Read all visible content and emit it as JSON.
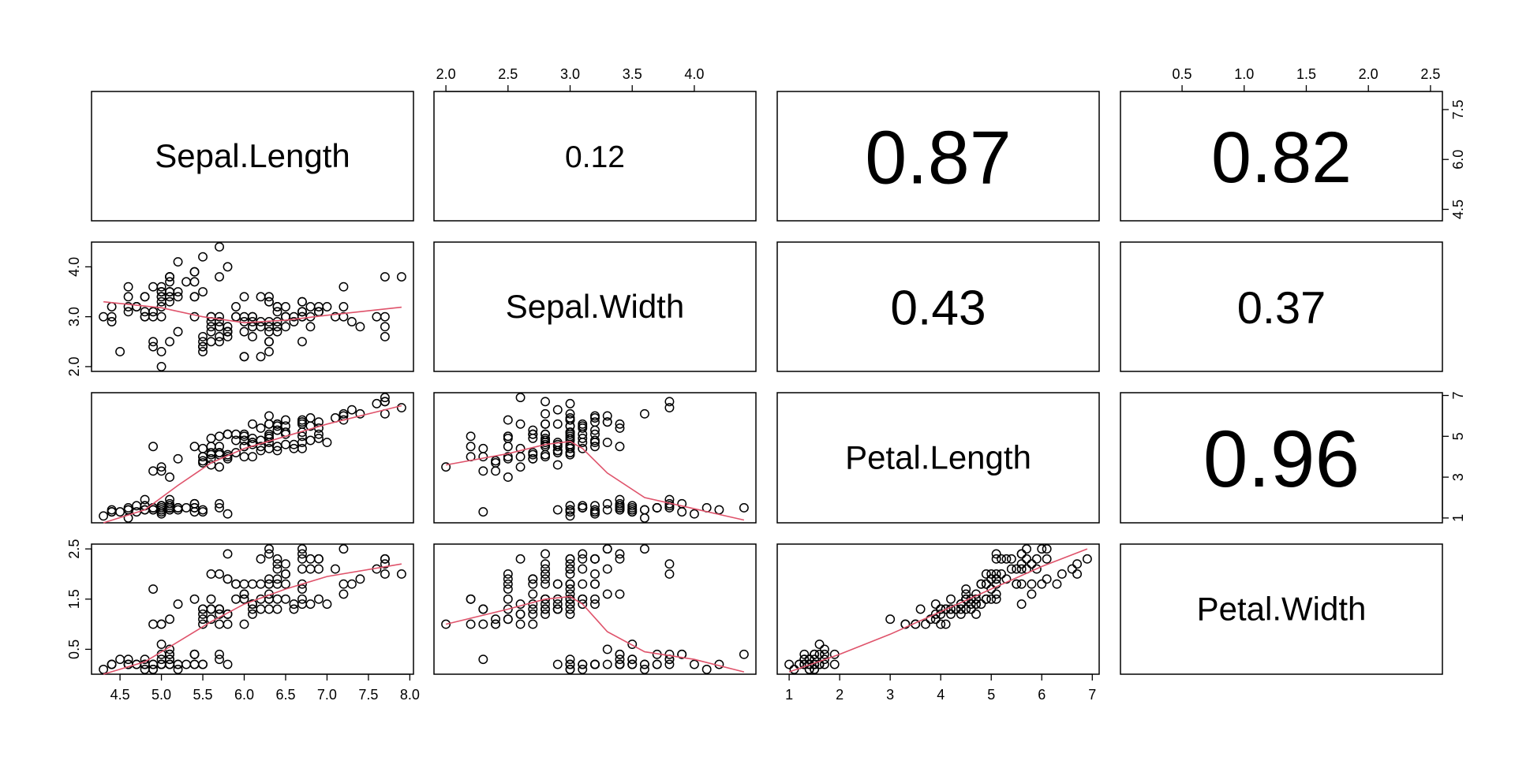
{
  "chart_data": {
    "type": "scatter",
    "variables": [
      "Sepal.Length",
      "Sepal.Width",
      "Petal.Length",
      "Petal.Width"
    ],
    "axes": [
      {
        "range": [
          4.3,
          7.9
        ],
        "ticks": [
          4.5,
          5.0,
          5.5,
          6.0,
          6.5,
          7.0,
          7.5,
          8.0
        ],
        "tick_labels": [
          "4.5",
          "5.0",
          "5.5",
          "6.0",
          "6.5",
          "7.0",
          "7.5",
          "8.0"
        ],
        "alt_ticks": [
          4.5,
          6.0,
          7.5
        ],
        "alt_tick_labels": [
          "4.5",
          "6.0",
          "7.5"
        ]
      },
      {
        "range": [
          2.0,
          4.4
        ],
        "ticks": [
          2.0,
          2.5,
          3.0,
          3.5,
          4.0
        ],
        "tick_labels": [
          "2.0",
          "2.5",
          "3.0",
          "3.5",
          "4.0"
        ],
        "alt_ticks": [
          2.0,
          3.0,
          4.0
        ],
        "alt_tick_labels": [
          "2.0",
          "3.0",
          "4.0"
        ]
      },
      {
        "range": [
          1.0,
          6.9
        ],
        "ticks": [
          1,
          2,
          3,
          4,
          5,
          6,
          7
        ],
        "tick_labels": [
          "1",
          "2",
          "3",
          "4",
          "5",
          "6",
          "7"
        ],
        "alt_ticks": [
          1,
          3,
          5,
          7
        ],
        "alt_tick_labels": [
          "1",
          "3",
          "5",
          "7"
        ]
      },
      {
        "range": [
          0.1,
          2.5
        ],
        "ticks": [
          0.5,
          1.0,
          1.5,
          2.0,
          2.5
        ],
        "tick_labels": [
          "0.5",
          "1.0",
          "1.5",
          "2.0",
          "2.5"
        ],
        "alt_ticks": [
          0.5,
          1.5,
          2.5
        ],
        "alt_tick_labels": [
          "0.5",
          "1.5",
          "2.5"
        ]
      }
    ],
    "correlations": [
      {
        "row": 0,
        "col": 1,
        "label": "0.12",
        "value": 0.12
      },
      {
        "row": 0,
        "col": 2,
        "label": "0.87",
        "value": 0.87
      },
      {
        "row": 0,
        "col": 3,
        "label": "0.82",
        "value": 0.82
      },
      {
        "row": 1,
        "col": 2,
        "label": "0.43",
        "value": 0.43
      },
      {
        "row": 1,
        "col": 3,
        "label": "0.37",
        "value": 0.37
      },
      {
        "row": 2,
        "col": 3,
        "label": "0.96",
        "value": 0.96
      }
    ],
    "data": {
      "sepal_length": [
        5.1,
        4.9,
        4.7,
        4.6,
        5.0,
        5.4,
        4.6,
        5.0,
        4.4,
        4.9,
        5.4,
        4.8,
        4.8,
        4.3,
        5.8,
        5.7,
        5.4,
        5.1,
        5.7,
        5.1,
        5.4,
        5.1,
        4.6,
        5.1,
        4.8,
        5.0,
        5.0,
        5.2,
        5.2,
        4.7,
        4.8,
        5.4,
        5.2,
        5.5,
        4.9,
        5.0,
        5.5,
        4.9,
        4.4,
        5.1,
        5.0,
        4.5,
        4.4,
        5.0,
        5.1,
        4.8,
        5.1,
        4.6,
        5.3,
        5.0,
        7.0,
        6.4,
        6.9,
        5.5,
        6.5,
        5.7,
        6.3,
        4.9,
        6.6,
        5.2,
        5.0,
        5.9,
        6.0,
        6.1,
        5.6,
        6.7,
        5.6,
        5.8,
        6.2,
        5.6,
        5.9,
        6.1,
        6.3,
        6.1,
        6.4,
        6.6,
        6.8,
        6.7,
        6.0,
        5.7,
        5.5,
        5.5,
        5.8,
        6.0,
        5.4,
        6.0,
        6.7,
        6.3,
        5.6,
        5.5,
        5.5,
        6.1,
        5.8,
        5.0,
        5.6,
        5.7,
        5.7,
        6.2,
        5.1,
        5.7,
        6.3,
        5.8,
        7.1,
        6.3,
        6.5,
        7.6,
        4.9,
        7.3,
        6.7,
        7.2,
        6.5,
        6.4,
        6.8,
        5.7,
        5.8,
        6.4,
        6.5,
        7.7,
        7.7,
        6.0,
        6.9,
        5.6,
        7.7,
        6.3,
        6.7,
        7.2,
        6.2,
        6.1,
        6.4,
        7.2,
        7.4,
        7.9,
        6.4,
        6.3,
        6.1,
        7.7,
        6.3,
        6.4,
        6.0,
        6.9,
        6.7,
        6.9,
        5.8,
        6.8,
        6.7,
        6.7,
        6.3,
        6.5,
        6.2,
        5.9
      ],
      "sepal_width": [
        3.5,
        3.0,
        3.2,
        3.1,
        3.6,
        3.9,
        3.4,
        3.4,
        2.9,
        3.1,
        3.7,
        3.4,
        3.0,
        3.0,
        4.0,
        4.4,
        3.9,
        3.5,
        3.8,
        3.8,
        3.4,
        3.7,
        3.6,
        3.3,
        3.4,
        3.0,
        3.4,
        3.5,
        3.4,
        3.2,
        3.1,
        3.4,
        4.1,
        4.2,
        3.1,
        3.2,
        3.5,
        3.6,
        3.0,
        3.4,
        3.5,
        2.3,
        3.2,
        3.5,
        3.8,
        3.0,
        3.8,
        3.2,
        3.7,
        3.3,
        3.2,
        3.2,
        3.1,
        2.3,
        2.8,
        2.8,
        3.3,
        2.4,
        2.9,
        2.7,
        2.0,
        3.0,
        2.2,
        2.9,
        2.9,
        3.1,
        3.0,
        2.7,
        2.2,
        2.5,
        3.2,
        2.8,
        2.5,
        2.8,
        2.9,
        3.0,
        2.8,
        3.0,
        2.9,
        2.6,
        2.4,
        2.4,
        2.7,
        2.7,
        3.0,
        3.4,
        3.1,
        2.3,
        3.0,
        2.5,
        2.6,
        3.0,
        2.6,
        2.3,
        2.7,
        3.0,
        2.9,
        2.9,
        2.5,
        2.8,
        3.3,
        2.7,
        3.0,
        2.9,
        3.0,
        3.0,
        2.5,
        2.9,
        2.5,
        3.6,
        3.2,
        2.7,
        3.0,
        2.5,
        2.8,
        3.2,
        3.0,
        3.8,
        2.6,
        2.2,
        3.2,
        2.8,
        2.8,
        2.7,
        3.3,
        3.2,
        2.8,
        3.0,
        2.8,
        3.0,
        2.8,
        3.8,
        2.8,
        2.8,
        2.6,
        3.0,
        3.4,
        3.1,
        3.0,
        3.1,
        3.1,
        3.1,
        2.7,
        3.2,
        3.3,
        3.0,
        2.5,
        3.0,
        3.4,
        3.0
      ],
      "petal_length": [
        1.4,
        1.4,
        1.3,
        1.5,
        1.4,
        1.7,
        1.4,
        1.5,
        1.4,
        1.5,
        1.5,
        1.6,
        1.4,
        1.1,
        1.2,
        1.5,
        1.3,
        1.4,
        1.7,
        1.5,
        1.7,
        1.5,
        1.0,
        1.7,
        1.9,
        1.6,
        1.6,
        1.5,
        1.4,
        1.6,
        1.6,
        1.5,
        1.5,
        1.4,
        1.5,
        1.2,
        1.3,
        1.4,
        1.3,
        1.5,
        1.3,
        1.3,
        1.3,
        1.6,
        1.9,
        1.4,
        1.6,
        1.4,
        1.5,
        1.4,
        4.7,
        4.5,
        4.9,
        4.0,
        4.6,
        4.5,
        4.7,
        3.3,
        4.6,
        3.9,
        3.5,
        4.2,
        4.0,
        4.7,
        3.6,
        4.4,
        4.5,
        4.1,
        4.5,
        3.9,
        4.8,
        4.0,
        4.9,
        4.7,
        4.3,
        4.4,
        4.8,
        5.0,
        4.5,
        3.5,
        3.8,
        3.7,
        3.9,
        5.1,
        4.5,
        4.5,
        4.7,
        4.4,
        4.1,
        4.0,
        4.4,
        4.6,
        4.0,
        3.3,
        4.2,
        4.2,
        4.2,
        4.3,
        3.0,
        4.1,
        6.0,
        5.1,
        5.9,
        5.6,
        5.8,
        6.6,
        4.5,
        6.3,
        5.8,
        6.1,
        5.1,
        5.3,
        5.5,
        5.0,
        5.1,
        5.3,
        5.5,
        6.7,
        6.9,
        5.0,
        5.7,
        4.9,
        6.7,
        4.9,
        5.7,
        6.0,
        4.8,
        4.9,
        5.6,
        5.8,
        6.1,
        6.4,
        5.6,
        5.1,
        5.6,
        6.1,
        5.6,
        5.5,
        4.8,
        5.4,
        5.6,
        5.1,
        5.1,
        5.9,
        5.7,
        5.2,
        5.0,
        5.2,
        5.4,
        5.1
      ],
      "petal_width": [
        0.2,
        0.2,
        0.2,
        0.2,
        0.2,
        0.4,
        0.3,
        0.2,
        0.2,
        0.1,
        0.2,
        0.2,
        0.1,
        0.1,
        0.2,
        0.4,
        0.4,
        0.3,
        0.3,
        0.3,
        0.2,
        0.4,
        0.2,
        0.5,
        0.2,
        0.2,
        0.4,
        0.2,
        0.2,
        0.2,
        0.2,
        0.4,
        0.1,
        0.2,
        0.2,
        0.2,
        0.2,
        0.1,
        0.2,
        0.2,
        0.3,
        0.3,
        0.2,
        0.6,
        0.4,
        0.3,
        0.2,
        0.2,
        0.2,
        0.2,
        1.4,
        1.5,
        1.5,
        1.3,
        1.5,
        1.3,
        1.6,
        1.0,
        1.3,
        1.4,
        1.0,
        1.5,
        1.0,
        1.4,
        1.3,
        1.4,
        1.5,
        1.0,
        1.5,
        1.1,
        1.8,
        1.3,
        1.5,
        1.2,
        1.3,
        1.4,
        1.4,
        1.7,
        1.5,
        1.0,
        1.1,
        1.0,
        1.2,
        1.6,
        1.5,
        1.6,
        1.5,
        1.3,
        1.3,
        1.3,
        1.2,
        1.4,
        1.2,
        1.0,
        1.3,
        1.2,
        1.3,
        1.3,
        1.1,
        1.3,
        2.5,
        1.9,
        2.1,
        1.8,
        2.2,
        2.1,
        1.7,
        1.8,
        1.8,
        2.5,
        2.0,
        1.9,
        2.1,
        2.0,
        2.4,
        2.3,
        1.8,
        2.2,
        2.3,
        1.5,
        2.3,
        2.0,
        2.0,
        1.8,
        2.1,
        1.8,
        1.8,
        1.8,
        2.1,
        1.6,
        1.9,
        2.0,
        2.2,
        1.5,
        1.4,
        2.3,
        2.4,
        1.8,
        1.8,
        2.1,
        2.4,
        2.3,
        1.9,
        2.3,
        2.5,
        2.3,
        1.9,
        2.0,
        2.3,
        1.8
      ]
    },
    "smoothers": {
      "sw_vs_sl": {
        "x": [
          4.3,
          5.0,
          5.5,
          6.0,
          6.5,
          7.0,
          7.9
        ],
        "y": [
          3.3,
          3.18,
          3.0,
          2.88,
          2.93,
          3.03,
          3.19
        ]
      },
      "pl_vs_sl": {
        "x": [
          4.3,
          4.8,
          5.2,
          5.6,
          6.0,
          6.5,
          7.0,
          7.9
        ],
        "y": [
          0.6,
          1.4,
          2.6,
          3.7,
          4.4,
          5.0,
          5.6,
          6.5
        ]
      },
      "pw_vs_sl": {
        "x": [
          4.3,
          4.8,
          5.2,
          5.6,
          6.0,
          6.5,
          7.0,
          7.9
        ],
        "y": [
          0.0,
          0.25,
          0.65,
          1.05,
          1.4,
          1.7,
          1.95,
          2.2
        ]
      },
      "pl_vs_sw": {
        "x": [
          2.0,
          2.5,
          2.8,
          3.0,
          3.1,
          3.3,
          3.6,
          4.0,
          4.4
        ],
        "y": [
          3.6,
          4.15,
          4.6,
          4.75,
          4.4,
          3.2,
          2.0,
          1.45,
          0.9
        ]
      },
      "pw_vs_sw": {
        "x": [
          2.0,
          2.5,
          2.8,
          3.0,
          3.1,
          3.3,
          3.6,
          4.0,
          4.4
        ],
        "y": [
          1.0,
          1.3,
          1.5,
          1.55,
          1.4,
          0.85,
          0.45,
          0.3,
          0.05
        ]
      },
      "pw_vs_pl": {
        "x": [
          1.0,
          2.0,
          3.0,
          4.0,
          5.0,
          6.0,
          6.9
        ],
        "y": [
          0.05,
          0.4,
          0.8,
          1.25,
          1.7,
          2.15,
          2.5
        ]
      }
    },
    "series_color": "#df536b",
    "point_color": "#000000"
  }
}
